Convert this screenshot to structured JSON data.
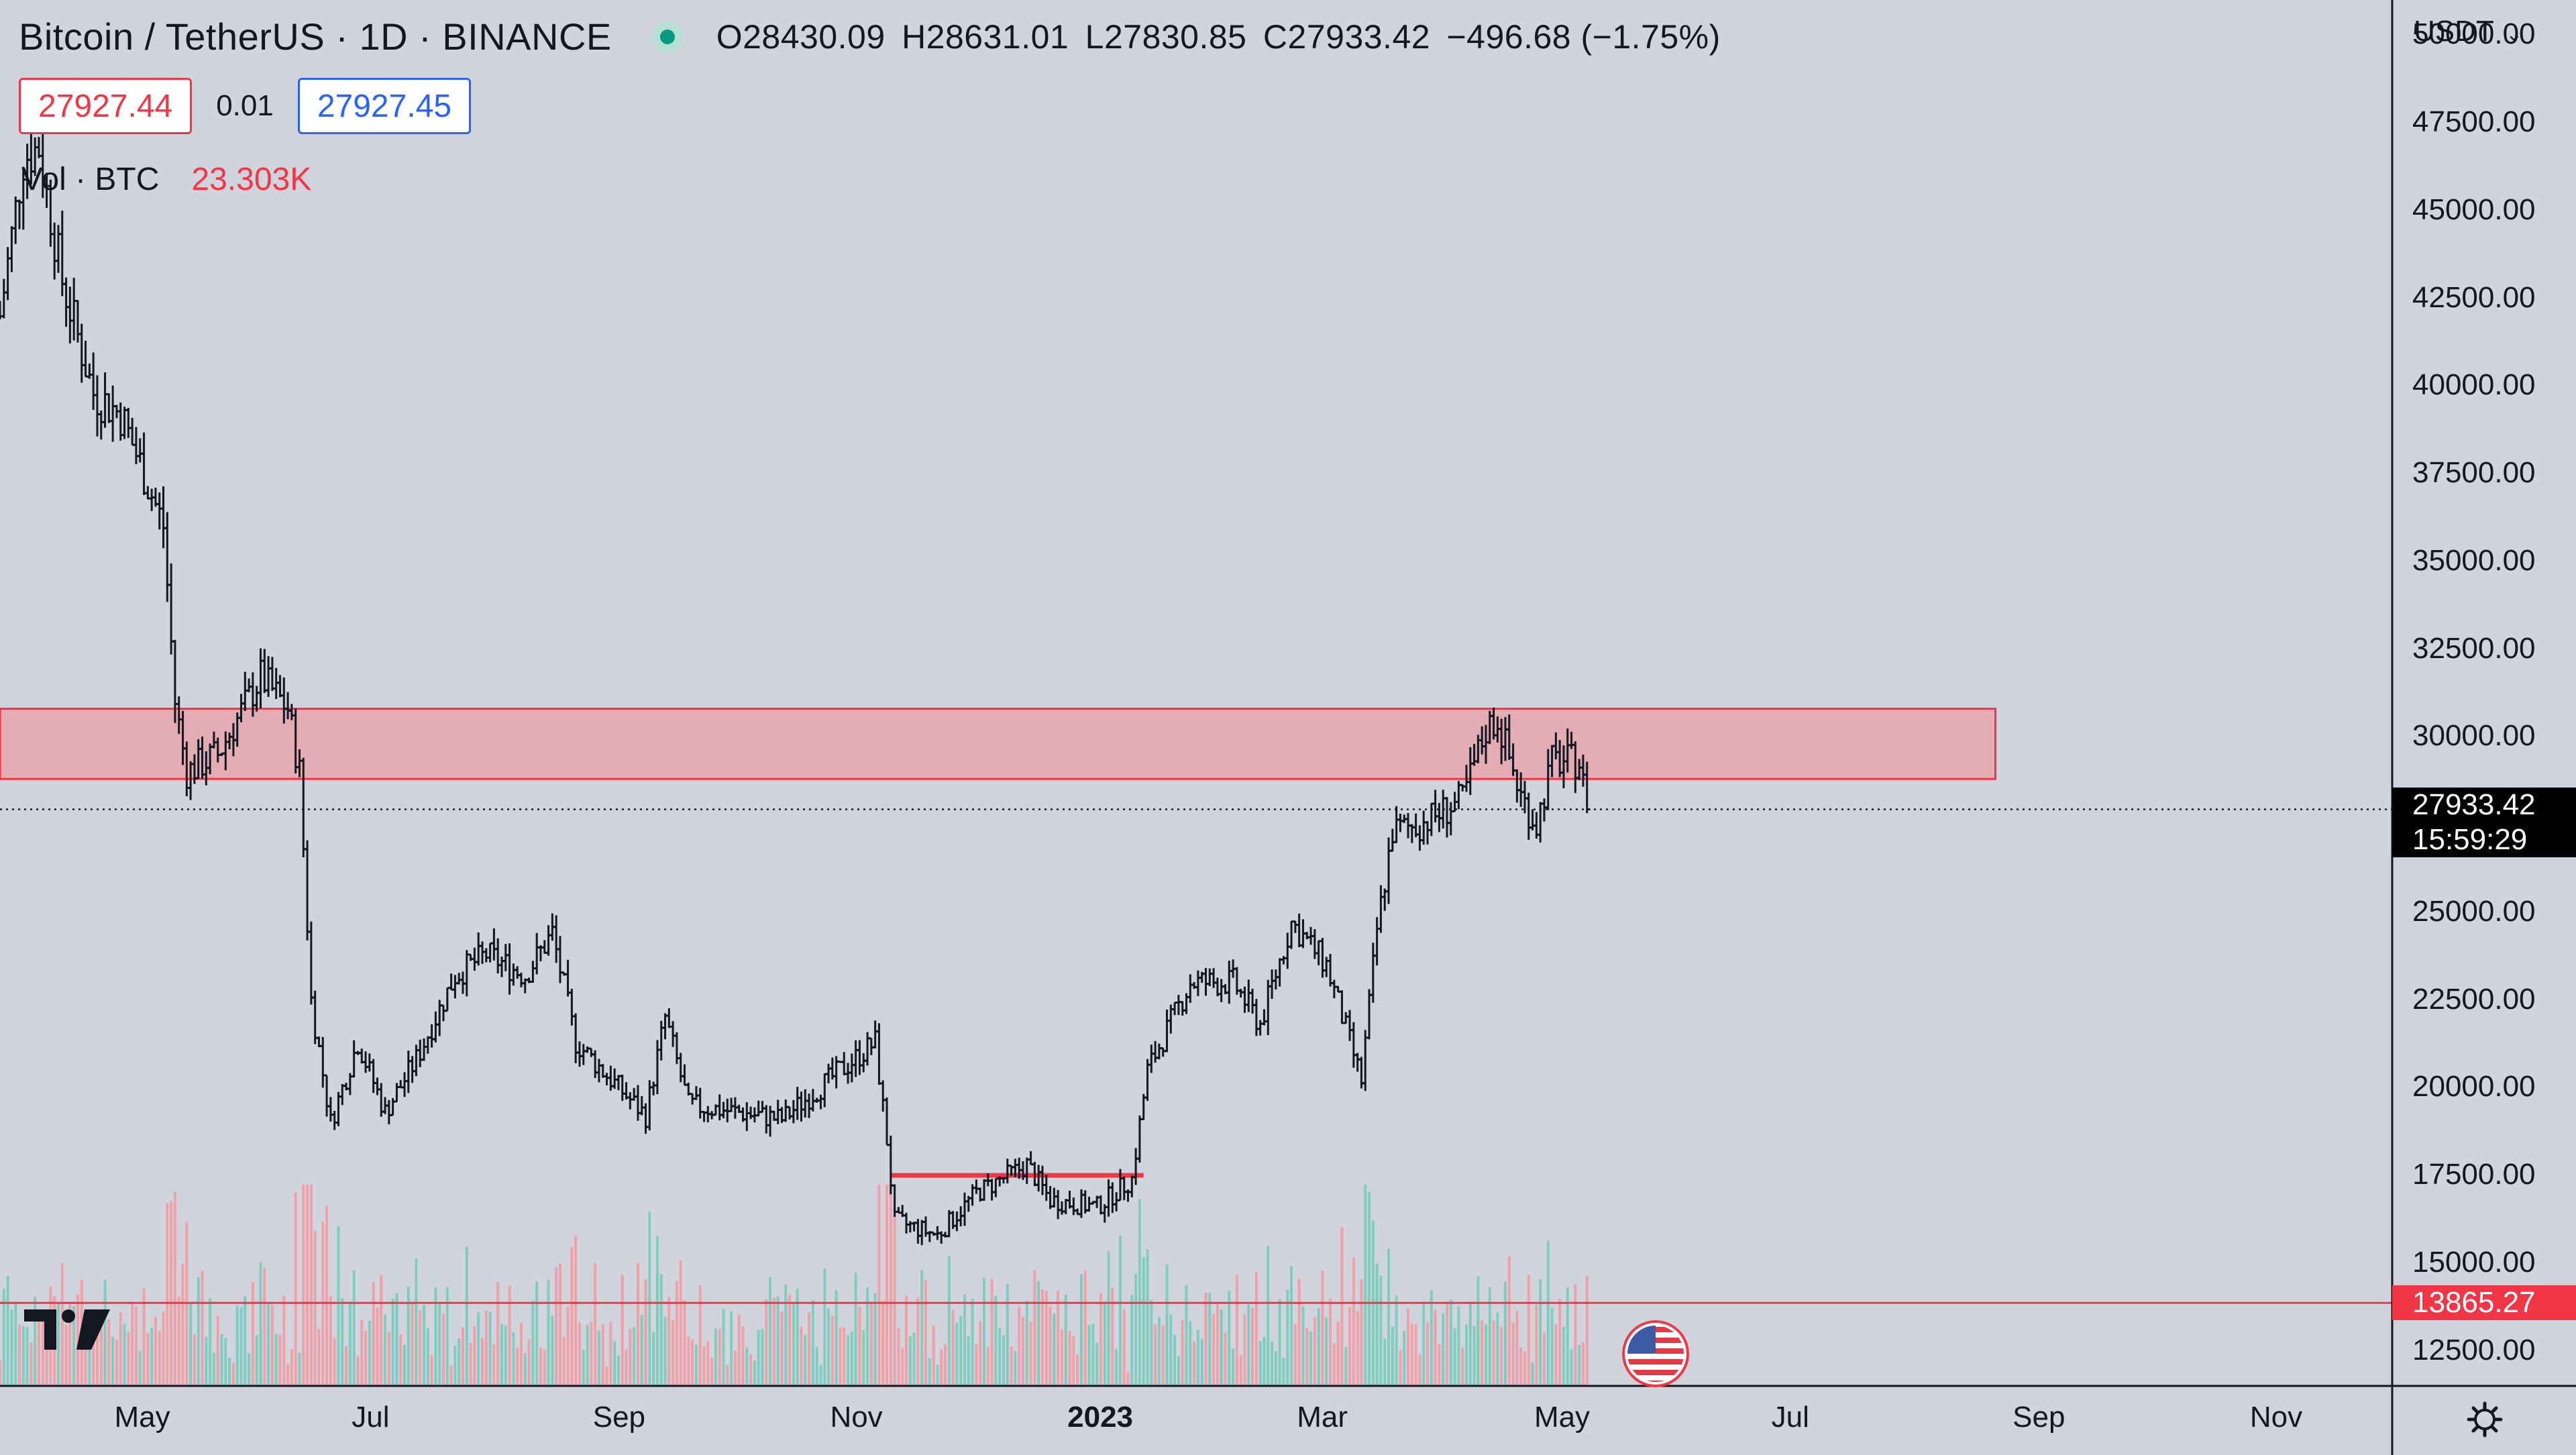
{
  "header": {
    "symbol": "Bitcoin / TetherUS · 1D · BINANCE",
    "open": "O28430.09",
    "high": "H28631.01",
    "low": "L27830.85",
    "close": "C27933.42",
    "change": "−496.68 (−1.75%)"
  },
  "quote": {
    "sell": "27927.44",
    "spread": "0.01",
    "buy": "27927.45"
  },
  "volume": {
    "label": "Vol · BTC",
    "value": "23.303K"
  },
  "price_axis": {
    "currency": "USDT",
    "ticks": [
      "50000.00",
      "47500.00",
      "45000.00",
      "42500.00",
      "40000.00",
      "37500.00",
      "35000.00",
      "32500.00",
      "30000.00",
      "25000.00",
      "22500.00",
      "20000.00",
      "17500.00",
      "15000.00",
      "12500.00"
    ],
    "last_price": "27933.42",
    "countdown": "15:59:29",
    "alert_price": "13865.27"
  },
  "time_axis": {
    "ticks": [
      "May",
      "Jul",
      "Sep",
      "Nov",
      "2023",
      "Mar",
      "May",
      "Jul",
      "Sep",
      "Nov"
    ]
  },
  "colors": {
    "background": "#d1d4dc",
    "candles": "#131722",
    "zone_fill": "#e8a6ad",
    "zone_border": "#f23645",
    "level_line": "#f23645",
    "volume_up": "#7ecdc0",
    "volume_down": "#f0a0a7",
    "last_price_tag": "#000000",
    "alert_tag": "#f23645"
  },
  "chart_data": {
    "type": "candlestick",
    "interval": "1D",
    "x_range": [
      "2022-03-25",
      "2023-11-30"
    ],
    "y_range": [
      11500,
      51000
    ],
    "series": [
      {
        "kind": "close_path",
        "points": [
          [
            "2022-03-25",
            42000
          ],
          [
            "2022-03-31",
            46500
          ],
          [
            "2022-04-04",
            46800
          ],
          [
            "2022-04-10",
            43000
          ],
          [
            "2022-04-18",
            39800
          ],
          [
            "2022-04-25",
            39200
          ],
          [
            "2022-05-01",
            37500
          ],
          [
            "2022-05-06",
            36000
          ],
          [
            "2022-05-09",
            31000
          ],
          [
            "2022-05-12",
            29000
          ],
          [
            "2022-05-20",
            29500
          ],
          [
            "2022-05-31",
            31700
          ],
          [
            "2022-06-07",
            30800
          ],
          [
            "2022-06-10",
            29000
          ],
          [
            "2022-06-13",
            22500
          ],
          [
            "2022-06-18",
            19000
          ],
          [
            "2022-06-25",
            21300
          ],
          [
            "2022-07-02",
            19300
          ],
          [
            "2022-07-10",
            20800
          ],
          [
            "2022-07-20",
            23200
          ],
          [
            "2022-07-28",
            23800
          ],
          [
            "2022-08-07",
            23200
          ],
          [
            "2022-08-14",
            24400
          ],
          [
            "2022-08-20",
            21300
          ],
          [
            "2022-08-31",
            20000
          ],
          [
            "2022-09-07",
            19200
          ],
          [
            "2022-09-12",
            22000
          ],
          [
            "2022-09-18",
            19500
          ],
          [
            "2022-10-01",
            19300
          ],
          [
            "2022-10-12",
            19100
          ],
          [
            "2022-10-25",
            20300
          ],
          [
            "2022-11-05",
            21300
          ],
          [
            "2022-11-08",
            18500
          ],
          [
            "2022-11-10",
            16200
          ],
          [
            "2022-11-21",
            15800
          ],
          [
            "2022-12-01",
            17000
          ],
          [
            "2022-12-14",
            17800
          ],
          [
            "2022-12-20",
            16800
          ],
          [
            "2023-01-01",
            16600
          ],
          [
            "2023-01-10",
            17400
          ],
          [
            "2023-01-14",
            20500
          ],
          [
            "2023-01-25",
            23000
          ],
          [
            "2023-02-05",
            23000
          ],
          [
            "2023-02-12",
            21800
          ],
          [
            "2023-02-20",
            24700
          ],
          [
            "2023-03-01",
            23500
          ],
          [
            "2023-03-10",
            20200
          ],
          [
            "2023-03-14",
            24500
          ],
          [
            "2023-03-18",
            27300
          ],
          [
            "2023-03-25",
            27500
          ],
          [
            "2023-04-05",
            28200
          ],
          [
            "2023-04-11",
            30200
          ],
          [
            "2023-04-14",
            30500
          ],
          [
            "2023-04-20",
            28300
          ],
          [
            "2023-04-24",
            27500
          ],
          [
            "2023-04-28",
            29300
          ],
          [
            "2023-05-05",
            29300
          ],
          [
            "2023-05-07",
            27933
          ]
        ]
      }
    ],
    "last_close": 27933.42,
    "resistance_zone": [
      28800,
      30800
    ],
    "resistance_zone_x": [
      "2022-03-25",
      "2023-08-20"
    ],
    "consolidation_level": {
      "y": 17500,
      "x": [
        "2022-11-09",
        "2023-01-13"
      ]
    },
    "alert_level": 13865.27
  }
}
